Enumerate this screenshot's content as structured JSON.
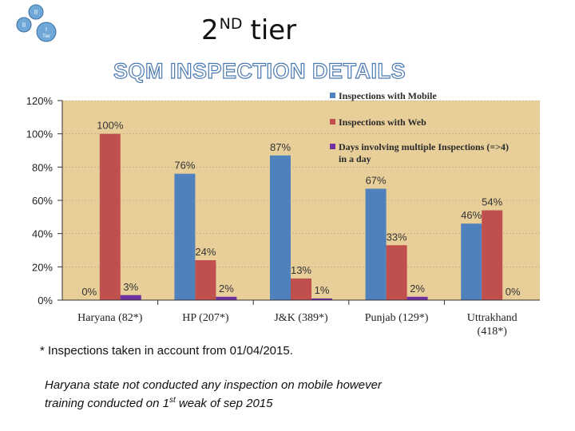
{
  "header": {
    "tier_number": "2",
    "tier_superscript": "ND",
    "tier_word": "tier",
    "title": "SQM INSPECTION DETAILS",
    "logo_labels": {
      "top": "II",
      "left": "II",
      "center_top": "I",
      "center_bottom": "Tier"
    }
  },
  "chart_data": {
    "type": "bar",
    "categories": [
      "Haryana (82*)",
      "HP (207*)",
      "J&K (389*)",
      "Punjab (129*)",
      "Uttrakhand (418*)"
    ],
    "category_lines": [
      [
        "Haryana (82*)"
      ],
      [
        "HP (207*)"
      ],
      [
        "J&K (389*)"
      ],
      [
        "Punjab (129*)"
      ],
      [
        "Uttrakhand",
        "(418*)"
      ]
    ],
    "series": [
      {
        "name": "Inspections with Mobile",
        "values": [
          0,
          76,
          87,
          67,
          46
        ],
        "labels": [
          "0%",
          "76%",
          "87%",
          "67%",
          "46%"
        ],
        "color": "#4f81bd"
      },
      {
        "name": "Inspections with Web",
        "values": [
          100,
          24,
          13,
          33,
          54
        ],
        "labels": [
          "100%",
          "24%",
          "13%",
          "33%",
          "54%"
        ],
        "color": "#c0504d"
      },
      {
        "name": "Days involving multiple Inspections (=>4) in a day",
        "legend_lines": [
          "Days involving multiple Inspections (=>4)",
          "in a day"
        ],
        "values": [
          3,
          2,
          1,
          2,
          0
        ],
        "labels": [
          "3%",
          "2%",
          "1%",
          "2%",
          "0%"
        ],
        "color": "#7030a0"
      }
    ],
    "y_ticks": [
      "0%",
      "20%",
      "40%",
      "60%",
      "80%",
      "100%",
      "120%"
    ],
    "ylim": [
      0,
      120
    ],
    "legend_position": "top-right",
    "plot_background": "#e8cf9a"
  },
  "footnote": "* Inspections taken in account from 01/04/2015.",
  "note": {
    "line1": "Haryana state not conducted any inspection on mobile however",
    "line2_prefix": "training conducted on 1",
    "line2_sup": "st",
    "line2_suffix": " weak of sep 2015"
  }
}
